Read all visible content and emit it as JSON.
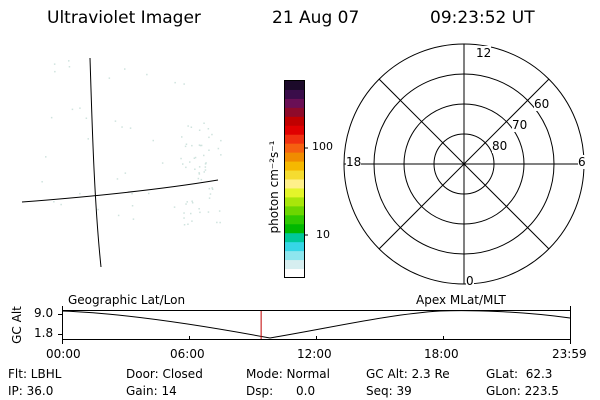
{
  "header": {
    "instrument": "Ultraviolet Imager",
    "date": "21 Aug 07",
    "time": "09:23:52 UT"
  },
  "colorbar": {
    "unit_label": "photon cm⁻²s⁻¹",
    "tick_labels": [
      "100",
      "10"
    ],
    "colors": [
      "#1c0a2a",
      "#3a0d4a",
      "#6a0f55",
      "#8e0a2a",
      "#c00000",
      "#e00000",
      "#f03010",
      "#f56010",
      "#f08c00",
      "#f5b800",
      "#f5dc30",
      "#fff08a",
      "#e4f52a",
      "#a8e60a",
      "#6cd600",
      "#2ec800",
      "#00b800",
      "#00c89a",
      "#36d6e6",
      "#8ee6ee",
      "#d6eef0",
      "#ffffff"
    ]
  },
  "polar": {
    "labels": {
      "top": "12",
      "bottom": "0",
      "left": "18",
      "right": "6"
    },
    "lat_labels": [
      "80",
      "70",
      "60"
    ]
  },
  "timeline": {
    "y_label": "GC Alt",
    "y_ticks": [
      "9.0",
      "1.8"
    ],
    "left_label": "Geographic Lat/Lon",
    "right_label": "Apex MLat/MLT",
    "x_ticks": [
      "00:00",
      "06:00",
      "12:00",
      "18:00",
      "23:59"
    ],
    "current_time_fraction": 0.391
  },
  "info": {
    "flt": "Flt: LBHL",
    "ip": "IP: 36.0",
    "door": "Door: Closed",
    "gain": "Gain: 14",
    "mode": "Mode: Normal",
    "dsp": "Dsp:      0.0",
    "gc_alt": "GC Alt: 2.3 Re",
    "seq": "Seq: 39",
    "glat": "GLat:  62.3",
    "glon": "GLon: 223.5"
  }
}
